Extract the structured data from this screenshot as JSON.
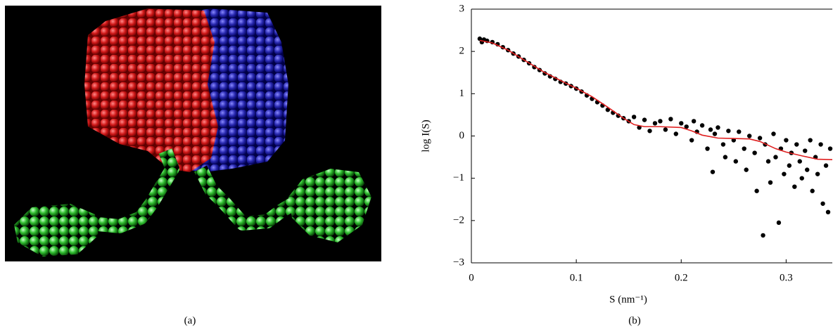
{
  "captions": [
    "(a)",
    "(b)"
  ],
  "chart_data": {
    "type": "scatter",
    "x_label": "S (nm⁻¹)",
    "y_label": "log I(S)",
    "xlim": [
      0,
      0.344
    ],
    "ylim": [
      -3,
      3
    ],
    "xticks": [
      0,
      0.1,
      0.2,
      0.3
    ],
    "yticks": [
      {
        "value": -3,
        "label": "−3"
      },
      {
        "value": -2,
        "label": "−2"
      },
      {
        "value": -1,
        "label": "−1"
      },
      0,
      1,
      2,
      3
    ],
    "series": [
      {
        "type": "scatter",
        "color": "#000000",
        "x": [
          0.008,
          0.01,
          0.012,
          0.015,
          0.02,
          0.025,
          0.03,
          0.035,
          0.04,
          0.045,
          0.05,
          0.055,
          0.06,
          0.065,
          0.07,
          0.075,
          0.08,
          0.085,
          0.09,
          0.095,
          0.1,
          0.105,
          0.11,
          0.115,
          0.12,
          0.125,
          0.13,
          0.135,
          0.14,
          0.145,
          0.15,
          0.155,
          0.16,
          0.165,
          0.17,
          0.175,
          0.18,
          0.185,
          0.19,
          0.195,
          0.2,
          0.205,
          0.21,
          0.212,
          0.215,
          0.22,
          0.225,
          0.228,
          0.23,
          0.232,
          0.235,
          0.24,
          0.242,
          0.245,
          0.25,
          0.252,
          0.255,
          0.26,
          0.262,
          0.265,
          0.27,
          0.272,
          0.275,
          0.278,
          0.28,
          0.283,
          0.285,
          0.288,
          0.29,
          0.293,
          0.295,
          0.298,
          0.3,
          0.303,
          0.305,
          0.308,
          0.31,
          0.313,
          0.315,
          0.318,
          0.32,
          0.323,
          0.325,
          0.328,
          0.33,
          0.333,
          0.335,
          0.338,
          0.34,
          0.342
        ],
        "values": [
          2.3,
          2.22,
          2.28,
          2.25,
          2.22,
          2.17,
          2.1,
          2.03,
          1.95,
          1.88,
          1.8,
          1.72,
          1.63,
          1.56,
          1.48,
          1.41,
          1.35,
          1.28,
          1.24,
          1.18,
          1.12,
          1.05,
          0.96,
          0.88,
          0.8,
          0.72,
          0.62,
          0.55,
          0.48,
          0.42,
          0.35,
          0.45,
          0.2,
          0.38,
          0.12,
          0.3,
          0.35,
          0.15,
          0.4,
          0.05,
          0.3,
          0.22,
          -0.1,
          0.35,
          0.1,
          0.25,
          -0.3,
          0.15,
          -0.85,
          0.05,
          0.2,
          -0.2,
          -0.5,
          0.12,
          -0.1,
          -0.6,
          0.1,
          -0.3,
          -0.8,
          0.0,
          -0.4,
          -1.3,
          -0.05,
          -2.35,
          -0.2,
          -0.6,
          -1.1,
          0.05,
          -0.5,
          -2.05,
          -0.3,
          -0.9,
          -0.1,
          -0.7,
          -0.4,
          -1.2,
          -0.2,
          -0.6,
          -1.0,
          -0.35,
          -0.8,
          -0.1,
          -1.3,
          -0.5,
          -0.9,
          -0.2,
          -1.6,
          -0.7,
          -1.8,
          -0.3
        ]
      },
      {
        "type": "line",
        "color": "#e02020",
        "x": [
          0.008,
          0.02,
          0.035,
          0.05,
          0.07,
          0.09,
          0.1,
          0.115,
          0.13,
          0.145,
          0.155,
          0.165,
          0.18,
          0.2,
          0.21,
          0.22,
          0.235,
          0.25,
          0.265,
          0.275,
          0.29,
          0.3,
          0.315,
          0.33,
          0.344
        ],
        "values": [
          2.26,
          2.2,
          2.03,
          1.8,
          1.5,
          1.25,
          1.13,
          0.93,
          0.68,
          0.42,
          0.27,
          0.22,
          0.22,
          0.2,
          0.12,
          0.02,
          -0.05,
          -0.06,
          -0.07,
          -0.13,
          -0.3,
          -0.38,
          -0.47,
          -0.55,
          -0.56
        ]
      }
    ]
  }
}
